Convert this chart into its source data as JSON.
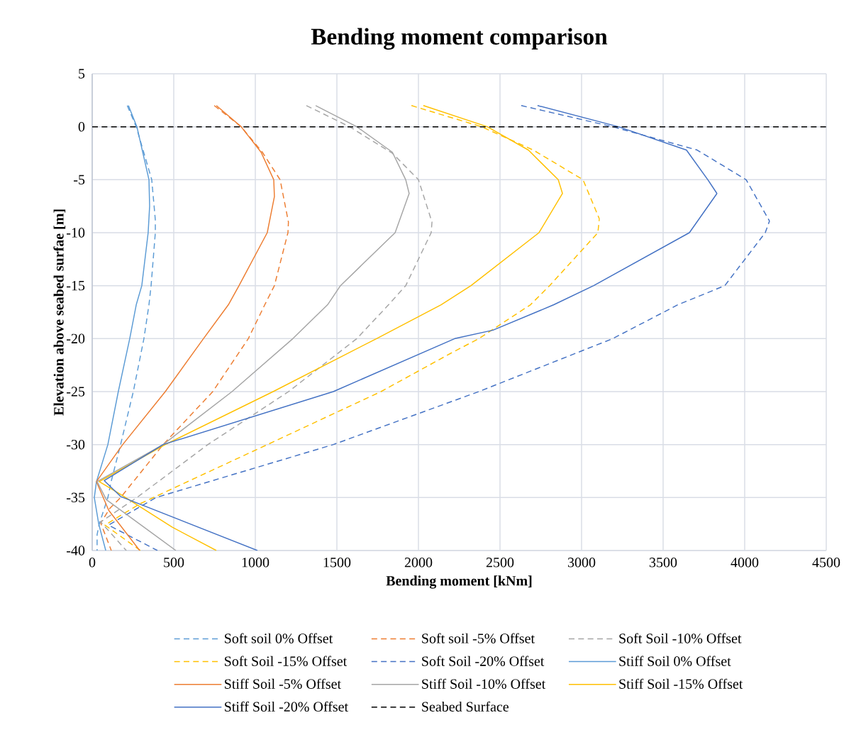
{
  "chart_data": {
    "type": "line",
    "title": "Bending moment comparison",
    "xlabel": "Bending moment [kNm]",
    "ylabel": "Elevation above seabed surfae [m]",
    "xlim": [
      0,
      4500
    ],
    "xticks": [
      0,
      500,
      1000,
      1500,
      2000,
      2500,
      3000,
      3500,
      4000,
      4500
    ],
    "ylim": [
      -40,
      5
    ],
    "yticks": [
      -40,
      -35,
      -30,
      -25,
      -20,
      -15,
      -10,
      -5,
      0,
      5
    ],
    "grid": true,
    "legend": "bottom",
    "series": [
      {
        "name": "Soft soil 0% Offset",
        "color": "#5b9bd5",
        "line_style": "dashed",
        "x": [
          215,
          270,
          365,
          387,
          387,
          361,
          348,
          317,
          252,
          174,
          116,
          96,
          43,
          30,
          30
        ],
        "values": [
          2,
          0,
          -5,
          -8.8,
          -10,
          -15,
          -16.8,
          -20,
          -25,
          -30,
          -33.5,
          -35,
          -37.5,
          -38.5,
          -40
        ]
      },
      {
        "name": "Soft soil -5% Offset",
        "color": "#ed7d31",
        "line_style": "dashed",
        "x": [
          748,
          913,
          1043,
          1152,
          1203,
          1200,
          1117,
          1058,
          957,
          739,
          435,
          174,
          109,
          52,
          117
        ],
        "values": [
          2,
          0,
          -2.4,
          -5,
          -9,
          -10,
          -15,
          -16.8,
          -20,
          -25,
          -30,
          -35,
          -36,
          -37.4,
          -40
        ]
      },
      {
        "name": "Soft Soil -10% Offset",
        "color": "#a5a5a5",
        "line_style": "dashed",
        "x": [
          1313,
          1578,
          1840,
          2000,
          2083,
          2078,
          1922,
          1817,
          1622,
          1204,
          709,
          274,
          52,
          209
        ],
        "values": [
          2,
          0,
          -2.5,
          -5,
          -9,
          -10,
          -15,
          -16.8,
          -20,
          -25,
          -30,
          -35,
          -37.3,
          -40
        ]
      },
      {
        "name": "Soft Soil -15% Offset",
        "color": "#ffc000",
        "line_style": "dashed",
        "x": [
          1957,
          2387,
          2704,
          3009,
          3109,
          3100,
          2804,
          2687,
          2370,
          2196,
          1770,
          1074,
          291,
          78,
          296
        ],
        "values": [
          2,
          0,
          -2.2,
          -5,
          -8.7,
          -10,
          -15,
          -16.8,
          -20,
          -21.4,
          -25,
          -30,
          -35.6,
          -37.6,
          -40
        ]
      },
      {
        "name": "Soft Soil -20% Offset",
        "color": "#4472c4",
        "line_style": "dashed",
        "x": [
          2630,
          3191,
          3709,
          4009,
          4152,
          4126,
          3878,
          3591,
          3191,
          2370,
          1478,
          391,
          100,
          400
        ],
        "values": [
          2,
          0,
          -2.2,
          -5,
          -8.9,
          -10,
          -15,
          -16.8,
          -20,
          -25,
          -30,
          -35,
          -37.6,
          -40
        ]
      },
      {
        "name": "Stiff Soil 0% Offset",
        "color": "#5b9bd5",
        "line_style": "solid",
        "x": [
          222,
          274,
          348,
          352,
          343,
          304,
          270,
          230,
          160,
          96,
          26,
          13,
          40,
          83
        ],
        "values": [
          2,
          0,
          -5,
          -7.5,
          -10,
          -15,
          -16.8,
          -20,
          -25,
          -30,
          -33.5,
          -35,
          -37.5,
          -40
        ]
      },
      {
        "name": "Stiff Soil -5% Offset",
        "color": "#ed7d31",
        "line_style": "solid",
        "x": [
          761,
          913,
          1035,
          1113,
          1117,
          1073,
          900,
          835,
          682,
          448,
          187,
          26,
          101,
          291
        ],
        "values": [
          2,
          0,
          -2.4,
          -5,
          -6.6,
          -10,
          -15,
          -16.8,
          -20,
          -25,
          -30,
          -33.5,
          -36.2,
          -40
        ]
      },
      {
        "name": "Stiff Soil -10% Offset",
        "color": "#a5a5a5",
        "line_style": "solid",
        "x": [
          1370,
          1622,
          1840,
          1922,
          1943,
          1857,
          1522,
          1443,
          1230,
          857,
          435,
          30,
          87,
          513
        ],
        "values": [
          2,
          0,
          -2.4,
          -5,
          -6.3,
          -10,
          -15,
          -16.8,
          -20,
          -25,
          -30,
          -33.5,
          -35.2,
          -40
        ]
      },
      {
        "name": "Stiff Soil -15% Offset",
        "color": "#ffc000",
        "line_style": "solid",
        "x": [
          2030,
          2422,
          2674,
          2857,
          2883,
          2739,
          2322,
          2139,
          1743,
          1109,
          448,
          43,
          174,
          491,
          761
        ],
        "values": [
          2,
          0,
          -2.2,
          -5,
          -6.3,
          -10,
          -15,
          -16.8,
          -20,
          -25,
          -30,
          -33.5,
          -34.7,
          -37.8,
          -40
        ]
      },
      {
        "name": "Stiff Soil -20% Offset",
        "color": "#4472c4",
        "line_style": "solid",
        "x": [
          2730,
          3226,
          3643,
          3774,
          3830,
          3661,
          3074,
          2830,
          2457,
          2222,
          1478,
          435,
          74,
          174,
          1013
        ],
        "values": [
          2,
          0,
          -2.2,
          -5,
          -6.3,
          -10,
          -15,
          -16.8,
          -19.2,
          -20,
          -25,
          -30,
          -33.4,
          -34.9,
          -40
        ]
      },
      {
        "name": "Seabed Surface",
        "color": "#000000",
        "line_style": "dashed",
        "x": [
          0,
          4500
        ],
        "values": [
          0,
          0
        ]
      }
    ]
  }
}
